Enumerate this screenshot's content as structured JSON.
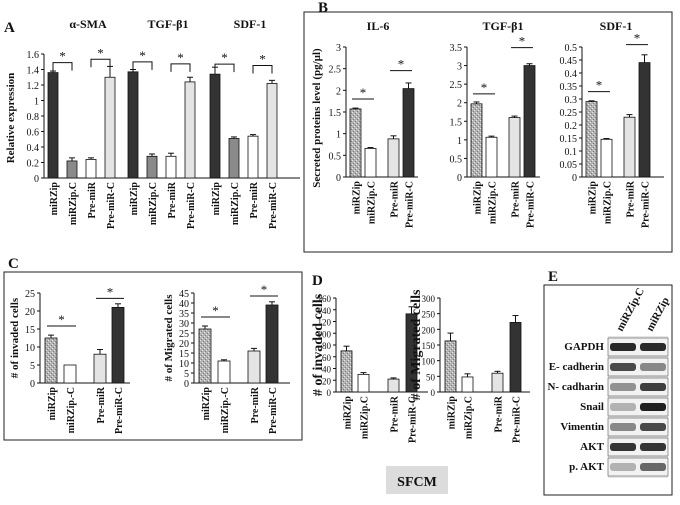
{
  "colors": {
    "dark": "#333333",
    "gray": "#8a8a8a",
    "white": "#ffffff",
    "light": "#e4e4e4",
    "stipple": "#b5b5b5"
  },
  "panels": {
    "A": "A",
    "B": "B",
    "C": "C",
    "D": "D",
    "E": "E"
  },
  "sfcm_label": "SFCM",
  "star": "*",
  "chart_data": [
    {
      "id": "A",
      "type": "bar",
      "ylabel": "Relative expression",
      "ylim": [
        0,
        1.6
      ],
      "yticks": [
        "0",
        "0.2",
        "0.4",
        "0.6",
        "0.8",
        "1",
        "1.2",
        "1.4",
        "1.6"
      ],
      "categories": [
        "miRZip",
        "miRZip.C",
        "Pre-miR",
        "Pre-miR-C"
      ],
      "groups": [
        {
          "title": "α-SMA",
          "values": [
            1.36,
            0.22,
            0.24,
            1.3
          ],
          "errors": [
            0.02,
            0.04,
            0.02,
            0.14
          ]
        },
        {
          "title": "TGF-β1",
          "values": [
            1.37,
            0.28,
            0.28,
            1.24
          ],
          "errors": [
            0.03,
            0.03,
            0.04,
            0.06
          ]
        },
        {
          "title": "SDF-1",
          "values": [
            1.34,
            0.51,
            0.54,
            1.22
          ],
          "errors": [
            0.09,
            0.02,
            0.02,
            0.04
          ]
        }
      ]
    },
    {
      "id": "B",
      "type": "bar",
      "ylabel": "Secreted proteins level (pg/µl)",
      "categories": [
        "miRZip",
        "miRZip.C",
        "Pre-miR",
        "Pre-miR-C"
      ],
      "subplots": [
        {
          "title": "IL-6",
          "ylim": [
            0,
            3
          ],
          "yticks": [
            "0",
            "0.5",
            "1",
            "1.5",
            "2",
            "2.5",
            "3"
          ],
          "values": [
            1.57,
            0.66,
            0.88,
            2.04
          ],
          "errors": [
            0.02,
            0.02,
            0.07,
            0.13
          ]
        },
        {
          "title": "TGF-β1",
          "ylim": [
            0,
            3.5
          ],
          "yticks": [
            "0",
            "0.5",
            "1",
            "1.5",
            "2",
            "2.5",
            "3",
            "3.5"
          ],
          "values": [
            1.97,
            1.07,
            1.6,
            3.0
          ],
          "errors": [
            0.05,
            0.03,
            0.04,
            0.05
          ]
        },
        {
          "title": "SDF-1",
          "ylim": [
            0,
            0.5
          ],
          "yticks": [
            "0",
            "0.05",
            "0.1",
            "0.15",
            "0.2",
            "0.25",
            "0.3",
            "0.35",
            "0.4",
            "0.45",
            "0.5"
          ],
          "values": [
            0.29,
            0.145,
            0.23,
            0.44
          ],
          "errors": [
            0.003,
            0.003,
            0.01,
            0.03
          ]
        }
      ]
    },
    {
      "id": "C",
      "type": "bar",
      "categories": [
        "miRZip",
        "miRZip.-C",
        "Pre-miR",
        "Pre-miR-C"
      ],
      "subplots": [
        {
          "ylabel": "# of invaded cells",
          "ylim": [
            0,
            25
          ],
          "yticks": [
            "0",
            "5",
            "10",
            "15",
            "20",
            "25"
          ],
          "values": [
            12.5,
            5,
            8,
            21
          ],
          "errors": [
            0.8,
            0,
            1.3,
            1.0
          ]
        },
        {
          "ylabel": "# of Migrated cells",
          "ylim": [
            0,
            45
          ],
          "yticks": [
            "0",
            "5",
            "10",
            "15",
            "20",
            "25",
            "30",
            "35",
            "40",
            "45"
          ],
          "values": [
            27,
            11,
            16,
            39
          ],
          "errors": [
            1.5,
            0.6,
            1.3,
            1.6
          ]
        }
      ]
    },
    {
      "id": "D",
      "type": "bar",
      "categories": [
        "miRZip",
        "miRZip.C",
        "Pre-miR",
        "Pre-miR-C"
      ],
      "subplots": [
        {
          "ylabel": "# of invaded cells",
          "ylim": [
            0,
            160
          ],
          "yticks": [
            "0",
            "20",
            "40",
            "60",
            "80",
            "100",
            "120",
            "140",
            "160"
          ],
          "values": [
            70,
            30,
            22,
            133
          ],
          "errors": [
            8,
            3,
            2,
            12
          ]
        },
        {
          "ylabel": "# of Migrated cells",
          "ylim": [
            0,
            300
          ],
          "yticks": [
            "0",
            "50",
            "100",
            "150",
            "200",
            "250",
            "300"
          ],
          "values": [
            163,
            48,
            60,
            222
          ],
          "errors": [
            25,
            10,
            6,
            22
          ]
        }
      ]
    }
  ],
  "western_blot": {
    "columns": [
      "miRZip.C",
      "miRZip"
    ],
    "rows": [
      {
        "label": "GAPDH",
        "intensity": [
          0.9,
          0.9
        ]
      },
      {
        "label": "E- cadherin",
        "intensity": [
          0.75,
          0.45
        ]
      },
      {
        "label": "N- cadharin",
        "intensity": [
          0.4,
          0.8
        ]
      },
      {
        "label": "Snail",
        "intensity": [
          0.25,
          0.95
        ]
      },
      {
        "label": "Vimentin",
        "intensity": [
          0.45,
          0.75
        ]
      },
      {
        "label": "AKT",
        "intensity": [
          0.85,
          0.85
        ]
      },
      {
        "label": "p. AKT",
        "intensity": [
          0.25,
          0.6
        ]
      }
    ]
  }
}
